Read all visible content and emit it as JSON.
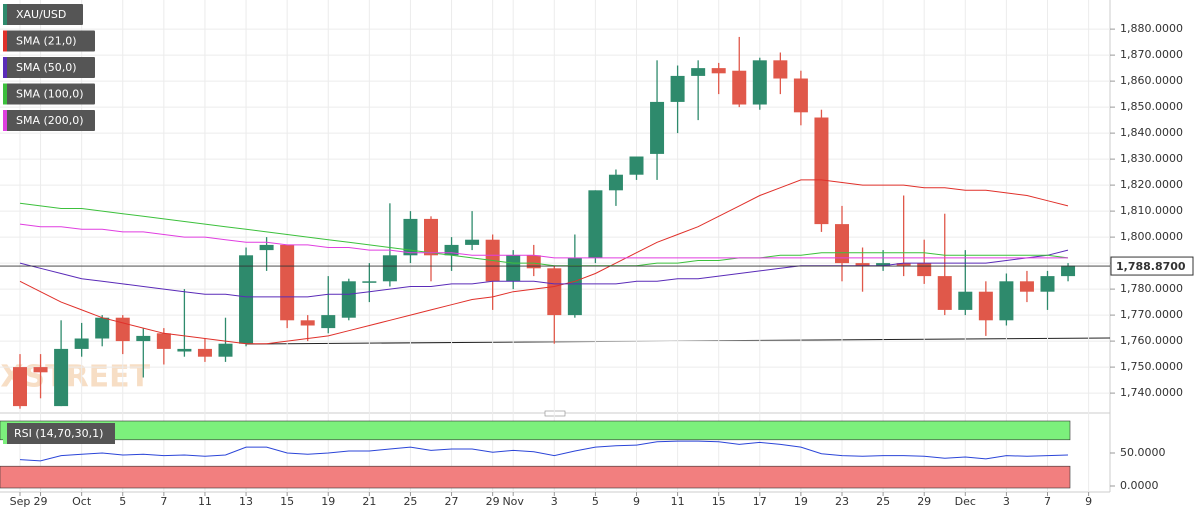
{
  "chart_data": [
    {
      "type": "candlestick",
      "legend": [
        "XAU/USD",
        "SMA (21,0)",
        "SMA (50,0)",
        "SMA (100,0)",
        "SMA (200,0)"
      ],
      "watermark": "FXSTREET",
      "categories": [
        "Sep",
        "29",
        null,
        "Oct",
        null,
        "5",
        null,
        "7",
        null,
        "11",
        null,
        "13",
        null,
        "15",
        null,
        "19",
        null,
        "21",
        null,
        "25",
        null,
        "27",
        null,
        "29",
        "Nov",
        null,
        "3",
        null,
        "5",
        null,
        "9",
        null,
        "11",
        null,
        "15",
        null,
        "17",
        null,
        "19",
        null,
        "23",
        null,
        "25",
        null,
        "29",
        null,
        "Dec",
        null,
        "3",
        null,
        "7",
        null,
        "9"
      ],
      "up_color": "#2e8a6c",
      "down_color": "#e0584a",
      "open": [
        1750,
        1750,
        1735,
        1757,
        1761,
        1769,
        1760,
        1763,
        1756,
        1757,
        1754,
        1759,
        1795,
        1797,
        1768,
        1765,
        1769,
        1783,
        1783,
        1793,
        1807,
        1793,
        1797,
        1799,
        1783,
        1793,
        1788,
        1770,
        1792,
        1818,
        1824,
        1832,
        1852,
        1862,
        1865,
        1864,
        1851,
        1868,
        1861,
        1846,
        1805,
        1790,
        1789,
        1790,
        1790,
        1785,
        1772,
        1779,
        1768,
        1783,
        1779,
        1785,
        null
      ],
      "high": [
        1755,
        1755,
        1768,
        1767,
        1770,
        1770,
        1765,
        1765,
        1780,
        1761,
        1769,
        1796,
        1800,
        1797,
        1770,
        1785,
        1784,
        1790,
        1813,
        1810,
        1808,
        1800,
        1810,
        1801,
        1795,
        1797,
        1789,
        1801,
        1818,
        1826,
        1831,
        1868,
        1866,
        1868,
        1867,
        1877,
        1869,
        1871,
        1864,
        1849,
        1812,
        1796,
        1795,
        1816,
        1799,
        1809,
        1795,
        1783,
        1786,
        1787,
        1787,
        1790,
        null
      ],
      "low": [
        1734,
        1738,
        1735,
        1754,
        1758,
        1755,
        1746,
        1751,
        1754,
        1752,
        1752,
        1758,
        1787,
        1765,
        1760,
        1763,
        1768,
        1775,
        1781,
        1790,
        1783,
        1787,
        1795,
        1772,
        1780,
        1785,
        1759,
        1769,
        1790,
        1812,
        1822,
        1822,
        1840,
        1845,
        1855,
        1850,
        1849,
        1855,
        1843,
        1802,
        1783,
        1779,
        1787,
        1785,
        1782,
        1770,
        1770,
        1762,
        1766,
        1775,
        1772,
        1783,
        null
      ],
      "close": [
        1735,
        1748,
        1757,
        1761,
        1769,
        1760,
        1762,
        1757,
        1757,
        1754,
        1759,
        1793,
        1797,
        1768,
        1766,
        1770,
        1783,
        1783,
        1793,
        1807,
        1793,
        1797,
        1799,
        1783,
        1793,
        1788,
        1770,
        1792,
        1818,
        1824,
        1831,
        1852,
        1862,
        1865,
        1863,
        1851,
        1868,
        1861,
        1848,
        1805,
        1790,
        1789,
        1790,
        1789,
        1785,
        1772,
        1779,
        1768,
        1783,
        1779,
        1785,
        1789,
        null
      ],
      "series": [
        {
          "name": "SMA (21,0)",
          "color": "#e0302a",
          "values": [
            1783,
            1779,
            1775,
            1772,
            1769,
            1767,
            1765,
            1763,
            1762,
            1761,
            1760,
            1759,
            1759,
            1760,
            1761,
            1762,
            1764,
            1766,
            1768,
            1770,
            1772,
            1774,
            1776,
            1777,
            1779,
            1780,
            1781,
            1783,
            1786,
            1790,
            1794,
            1798,
            1801,
            1804,
            1808,
            1812,
            1816,
            1819,
            1822,
            1822,
            1821,
            1820,
            1820,
            1820,
            1819,
            1819,
            1818,
            1818,
            1817,
            1816,
            1814,
            1812,
            null
          ]
        },
        {
          "name": "SMA (50,0)",
          "color": "#5a2bb8",
          "values": [
            1790,
            1788,
            1786,
            1784,
            1783,
            1782,
            1781,
            1780,
            1779,
            1778,
            1778,
            1777,
            1777,
            1777,
            1777,
            1778,
            1778,
            1779,
            1780,
            1781,
            1781,
            1782,
            1782,
            1783,
            1783,
            1783,
            1782,
            1782,
            1782,
            1782,
            1783,
            1783,
            1784,
            1784,
            1785,
            1786,
            1787,
            1788,
            1789,
            1789,
            1789,
            1789,
            1789,
            1790,
            1790,
            1790,
            1790,
            1790,
            1791,
            1792,
            1793,
            1795,
            null
          ]
        },
        {
          "name": "SMA (100,0)",
          "color": "#3cc03c",
          "values": [
            1813,
            1812,
            1811,
            1811,
            1810,
            1809,
            1808,
            1807,
            1806,
            1805,
            1804,
            1803,
            1802,
            1801,
            1800,
            1799,
            1798,
            1797,
            1796,
            1795,
            1794,
            1793,
            1792,
            1791,
            1790,
            1790,
            1789,
            1789,
            1789,
            1789,
            1789,
            1790,
            1790,
            1791,
            1791,
            1792,
            1792,
            1793,
            1793,
            1794,
            1794,
            1794,
            1794,
            1794,
            1794,
            1793,
            1793,
            1793,
            1793,
            1793,
            1793,
            1792,
            null
          ]
        },
        {
          "name": "SMA (200,0)",
          "color": "#e03ee0",
          "values": [
            1805,
            1804,
            1804,
            1803,
            1803,
            1802,
            1802,
            1801,
            1800,
            1800,
            1799,
            1798,
            1798,
            1797,
            1797,
            1796,
            1796,
            1795,
            1795,
            1794,
            1794,
            1794,
            1793,
            1793,
            1793,
            1793,
            1792,
            1792,
            1792,
            1792,
            1792,
            1792,
            1792,
            1792,
            1792,
            1792,
            1792,
            1792,
            1792,
            1792,
            1792,
            1792,
            1792,
            1792,
            1792,
            1792,
            1792,
            1792,
            1792,
            1792,
            1792,
            1792,
            null
          ]
        }
      ],
      "last_price": {
        "value": 1788.87,
        "label": "1,788.8700"
      },
      "ylim": [
        1733.5,
        1891.2
      ],
      "yticks": [
        {
          "value": 1740,
          "label": "1,740.0000"
        },
        {
          "value": 1750,
          "label": "1,750.0000"
        },
        {
          "value": 1760,
          "label": "1,760.0000"
        },
        {
          "value": 1770,
          "label": "1,770.0000"
        },
        {
          "value": 1780,
          "label": "1,780.0000"
        },
        {
          "value": 1790,
          "label": "1,790.0000"
        },
        {
          "value": 1800,
          "label": "1,800.0000"
        },
        {
          "value": 1810,
          "label": "1,810.0000"
        },
        {
          "value": 1820,
          "label": "1,820.0000"
        },
        {
          "value": 1830,
          "label": "1,830.0000"
        },
        {
          "value": 1840,
          "label": "1,840.0000"
        },
        {
          "value": 1850,
          "label": "1,850.0000"
        },
        {
          "value": 1860,
          "label": "1,860.0000"
        },
        {
          "value": 1870,
          "label": "1,870.0000"
        },
        {
          "value": 1880,
          "label": "1,880.0000"
        }
      ],
      "grid": true
    },
    {
      "type": "line",
      "legend": [
        "RSI (14,70,30,1)"
      ],
      "series": [
        {
          "name": "RSI (14,70,30,1)",
          "color": "#2b45d8",
          "values": [
            40,
            38,
            46,
            48,
            50,
            47,
            48,
            46,
            47,
            45,
            47,
            59,
            59,
            50,
            48,
            50,
            53,
            53,
            56,
            59,
            54,
            56,
            56,
            51,
            54,
            52,
            46,
            53,
            59,
            61,
            62,
            67,
            68,
            68,
            67,
            63,
            66,
            63,
            59,
            49,
            46,
            45,
            46,
            46,
            45,
            42,
            44,
            41,
            46,
            45,
            46,
            47,
            null
          ]
        }
      ],
      "overbought": 70,
      "oversold": 30,
      "ylim": [
        0,
        100
      ],
      "yticks": [
        {
          "value": 0,
          "label": "0.0000"
        },
        {
          "value": 50,
          "label": "50.0000"
        }
      ]
    }
  ]
}
